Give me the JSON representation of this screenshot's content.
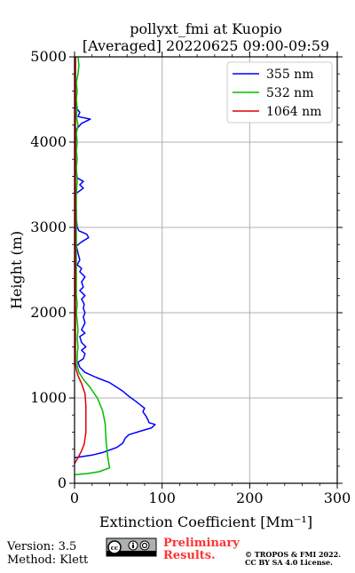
{
  "chart_data": {
    "type": "line",
    "title_line1": "pollyxt_fmi at Kuopio",
    "title_line2": "[Averaged] 20220625 09:00-09:59",
    "xlabel": "Extinction Coefficient [Mm⁻¹]",
    "ylabel": "Height (m)",
    "xlim": [
      0,
      300
    ],
    "ylim": [
      0,
      5000
    ],
    "x_ticks": [
      0,
      100,
      200,
      300
    ],
    "y_ticks": [
      0,
      1000,
      2000,
      3000,
      4000,
      5000
    ],
    "grid": true,
    "legend_position": "top-right",
    "series": [
      {
        "name": "355 nm",
        "color": "#0000ff",
        "points": [
          [
            0,
            300
          ],
          [
            20,
            330
          ],
          [
            32,
            360
          ],
          [
            48,
            420
          ],
          [
            55,
            470
          ],
          [
            58,
            530
          ],
          [
            62,
            570
          ],
          [
            75,
            610
          ],
          [
            88,
            650
          ],
          [
            92,
            690
          ],
          [
            85,
            710
          ],
          [
            84,
            740
          ],
          [
            82,
            780
          ],
          [
            78,
            840
          ],
          [
            80,
            880
          ],
          [
            75,
            920
          ],
          [
            70,
            960
          ],
          [
            62,
            1020
          ],
          [
            55,
            1080
          ],
          [
            40,
            1180
          ],
          [
            25,
            1240
          ],
          [
            12,
            1300
          ],
          [
            6,
            1360
          ],
          [
            4,
            1420
          ],
          [
            10,
            1460
          ],
          [
            12,
            1520
          ],
          [
            8,
            1560
          ],
          [
            13,
            1600
          ],
          [
            8,
            1650
          ],
          [
            6,
            1720
          ],
          [
            12,
            1760
          ],
          [
            8,
            1800
          ],
          [
            12,
            1880
          ],
          [
            10,
            1950
          ],
          [
            12,
            2000
          ],
          [
            10,
            2050
          ],
          [
            11,
            2100
          ],
          [
            8,
            2160
          ],
          [
            12,
            2200
          ],
          [
            6,
            2260
          ],
          [
            10,
            2300
          ],
          [
            8,
            2360
          ],
          [
            12,
            2420
          ],
          [
            6,
            2480
          ],
          [
            8,
            2520
          ],
          [
            3,
            2560
          ],
          [
            6,
            2620
          ],
          [
            4,
            2700
          ],
          [
            2,
            2780
          ],
          [
            8,
            2830
          ],
          [
            16,
            2880
          ],
          [
            14,
            2920
          ],
          [
            5,
            2960
          ],
          [
            3,
            3000
          ],
          [
            2,
            3100
          ],
          [
            2,
            3200
          ],
          [
            1,
            3300
          ],
          [
            2,
            3400
          ],
          [
            10,
            3460
          ],
          [
            6,
            3500
          ],
          [
            10,
            3540
          ],
          [
            3,
            3580
          ],
          [
            2,
            3650
          ],
          [
            1,
            3800
          ],
          [
            1,
            4000
          ],
          [
            2,
            4150
          ],
          [
            8,
            4220
          ],
          [
            18,
            4270
          ],
          [
            4,
            4300
          ],
          [
            6,
            4350
          ],
          [
            2,
            4400
          ],
          [
            1,
            4500
          ],
          [
            1,
            4700
          ],
          [
            1,
            4900
          ],
          [
            1,
            5000
          ]
        ]
      },
      {
        "name": "532 nm",
        "color": "#00bb00",
        "points": [
          [
            0,
            100
          ],
          [
            15,
            115
          ],
          [
            28,
            135
          ],
          [
            40,
            180
          ],
          [
            38,
            300
          ],
          [
            36,
            500
          ],
          [
            35,
            700
          ],
          [
            32,
            850
          ],
          [
            26,
            1000
          ],
          [
            18,
            1120
          ],
          [
            10,
            1220
          ],
          [
            5,
            1300
          ],
          [
            3,
            1380
          ],
          [
            3,
            1500
          ],
          [
            4,
            1600
          ],
          [
            3,
            1700
          ],
          [
            4,
            1800
          ],
          [
            3,
            1900
          ],
          [
            2,
            2000
          ],
          [
            3,
            2100
          ],
          [
            2,
            2200
          ],
          [
            2,
            2400
          ],
          [
            2,
            2600
          ],
          [
            2,
            2800
          ],
          [
            2,
            3000
          ],
          [
            2,
            3200
          ],
          [
            2,
            3400
          ],
          [
            3,
            3550
          ],
          [
            2,
            3700
          ],
          [
            3,
            3800
          ],
          [
            2,
            3900
          ],
          [
            3,
            4000
          ],
          [
            2,
            4100
          ],
          [
            4,
            4200
          ],
          [
            2,
            4300
          ],
          [
            3,
            4400
          ],
          [
            2,
            4500
          ],
          [
            3,
            4600
          ],
          [
            2,
            4700
          ],
          [
            4,
            4800
          ],
          [
            5,
            4900
          ],
          [
            4,
            5000
          ]
        ]
      },
      {
        "name": "1064 nm",
        "color": "#dd0000",
        "points": [
          [
            0,
            230
          ],
          [
            4,
            300
          ],
          [
            8,
            380
          ],
          [
            11,
            460
          ],
          [
            13,
            600
          ],
          [
            13,
            750
          ],
          [
            13,
            900
          ],
          [
            12,
            1050
          ],
          [
            8,
            1170
          ],
          [
            4,
            1260
          ],
          [
            2,
            1330
          ],
          [
            1,
            1400
          ],
          [
            1,
            1600
          ],
          [
            1,
            2000
          ],
          [
            1,
            2400
          ],
          [
            1,
            2800
          ],
          [
            1,
            3200
          ],
          [
            1,
            3600
          ],
          [
            1,
            4000
          ],
          [
            1,
            4400
          ],
          [
            1,
            4800
          ],
          [
            1,
            5000
          ]
        ]
      }
    ]
  },
  "footer": {
    "version": "Version: 3.5",
    "method": "Method: Klett",
    "license_badge": "cc-by-sa-badge",
    "preliminary_line1": "Preliminary",
    "preliminary_line2": "Results.",
    "copyright_line1": "© TROPOS & FMI 2022.",
    "copyright_line2": "CC BY SA 4.0 License."
  }
}
